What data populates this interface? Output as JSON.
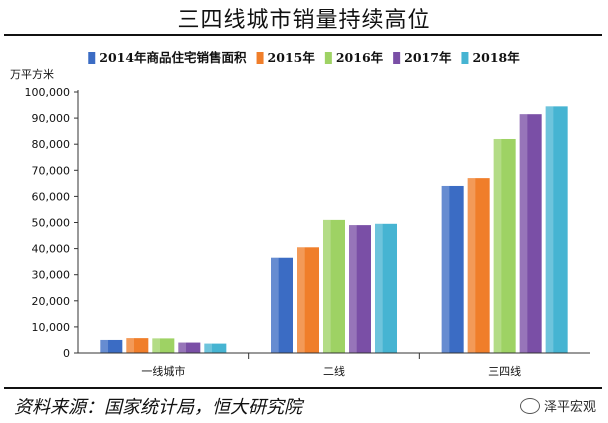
{
  "title": "三四线城市销量持续高位",
  "source": "资料来源：国家统计局，恒大研究院",
  "watermark": "泽平宏观",
  "chart_data": {
    "type": "bar",
    "ylabel": "万平方米",
    "ylim": [
      0,
      100000
    ],
    "yticks": [
      "0",
      "10,000",
      "20,000",
      "30,000",
      "40,000",
      "50,000",
      "60,000",
      "70,000",
      "80,000",
      "90,000",
      "100,000"
    ],
    "categories": [
      "一线城市",
      "二线",
      "三四线"
    ],
    "legend_position": "top",
    "series": [
      {
        "name": "2014年商品住宅销售面积",
        "color": "#3b6cc4",
        "values": [
          5000,
          36500,
          64000
        ]
      },
      {
        "name": "2015年",
        "color": "#f07e2a",
        "values": [
          5700,
          40500,
          67000
        ]
      },
      {
        "name": "2016年",
        "color": "#9ed264",
        "values": [
          5600,
          51000,
          82000
        ]
      },
      {
        "name": "2017年",
        "color": "#7a4fa6",
        "values": [
          4000,
          49000,
          91500
        ]
      },
      {
        "name": "2018年",
        "color": "#46b4d2",
        "values": [
          3600,
          49500,
          94500
        ]
      }
    ]
  }
}
